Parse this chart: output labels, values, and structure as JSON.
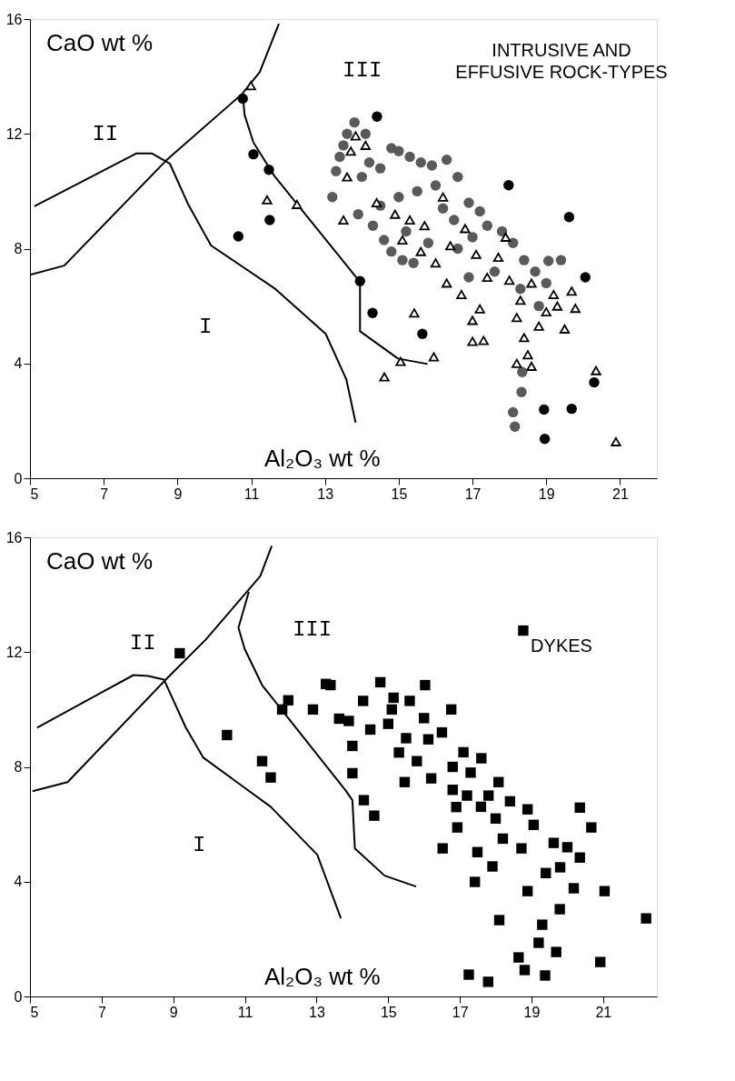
{
  "chart_data": [
    {
      "type": "scatter",
      "title": "INTRUSIVE AND EFFUSIVE ROCK-TYPES",
      "xlabel": "Al₂O₃ wt %",
      "ylabel": "CaO wt %",
      "xlim": [
        5,
        22
      ],
      "ylim": [
        0,
        16
      ],
      "xticks": [
        5,
        7,
        9,
        11,
        13,
        15,
        17,
        19,
        21
      ],
      "yticks": [
        0,
        4,
        8,
        12,
        16
      ],
      "grid": false,
      "annotations": [
        "I",
        "II",
        "III"
      ],
      "series": [
        {
          "type": "line",
          "color": "#000000",
          "marker": "none",
          "line_style": "solid",
          "x": [
            5.12,
            7.89,
            8.3,
            8.79,
            9.28,
            9.91,
            11.63,
            13.02,
            13.58,
            13.83
          ],
          "values": [
            9.48,
            11.32,
            11.32,
            10.97,
            9.57,
            8.11,
            6.62,
            5.03,
            3.44,
            1.94
          ]
        },
        {
          "type": "line",
          "color": "#000000",
          "marker": "none",
          "line_style": "solid",
          "x": [
            5.0,
            5.93,
            8.69,
            10.75,
            11.23,
            11.75
          ],
          "values": [
            7.09,
            7.41,
            11.07,
            13.39,
            14.15,
            15.84
          ]
        },
        {
          "type": "line",
          "color": "#000000",
          "marker": "none",
          "line_style": "solid",
          "x": [
            10.77,
            10.82,
            11.06,
            11.63,
            13.83,
            13.95,
            13.95,
            14.98,
            15.78
          ],
          "values": [
            13.36,
            12.66,
            11.7,
            10.53,
            7.03,
            6.87,
            5.12,
            4.17,
            3.98
          ]
        },
        {
          "type": "scatter",
          "color": "#5a5a5a",
          "marker": "circle",
          "x": [
            13.3,
            13.5,
            13.6,
            13.8,
            13.4,
            13.2,
            13.9,
            14.0,
            14.2,
            14.5,
            14.8,
            15.0,
            15.3,
            15.6,
            15.9,
            16.3,
            16.6,
            16.0,
            15.5,
            15.0,
            14.5,
            14.3,
            14.6,
            14.8,
            15.1,
            15.4,
            15.8,
            16.2,
            16.5,
            16.9,
            17.2,
            17.4,
            17.0,
            16.6,
            17.8,
            18.1,
            18.4,
            18.7,
            19.0,
            19.4,
            17.6,
            16.9,
            18.3,
            18.8,
            18.35,
            18.33,
            18.1,
            18.15,
            15.2,
            14.1,
            19.06
          ],
          "values": [
            10.7,
            11.6,
            12.0,
            12.4,
            11.2,
            9.8,
            9.2,
            10.5,
            11.0,
            10.8,
            11.5,
            11.4,
            11.2,
            11.0,
            10.9,
            11.1,
            10.5,
            10.2,
            10.0,
            9.8,
            9.5,
            8.8,
            8.3,
            7.9,
            7.6,
            7.5,
            8.2,
            9.4,
            9.0,
            9.6,
            9.3,
            8.8,
            8.4,
            8.0,
            8.6,
            8.2,
            7.6,
            7.2,
            6.8,
            7.6,
            7.2,
            7.0,
            6.6,
            6.0,
            3.7,
            3.0,
            2.3,
            1.8,
            8.6,
            12.0,
            7.57
          ]
        },
        {
          "type": "scatter",
          "color": "#000000",
          "marker": "triangle",
          "x": [
            10.99,
            11.43,
            12.24,
            13.83,
            15.42,
            15.05,
            15.95,
            14.61,
            17.0,
            19.69,
            19.79,
            20.35,
            20.89,
            13.7,
            14.1,
            13.6,
            13.5,
            14.4,
            14.9,
            15.3,
            15.7,
            15.1,
            15.6,
            16.0,
            16.4,
            16.8,
            17.1,
            17.4,
            17.7,
            18.0,
            18.3,
            18.6,
            19.0,
            19.2,
            19.5,
            16.3,
            16.7,
            17.2,
            17.0,
            17.3,
            18.2,
            18.4,
            18.5,
            18.2,
            18.6,
            18.8,
            19.3,
            17.9,
            16.2
          ],
          "values": [
            13.68,
            9.7,
            9.54,
            11.93,
            5.76,
            4.07,
            4.23,
            3.53,
            4.77,
            6.52,
            5.92,
            3.75,
            1.27,
            11.4,
            11.6,
            10.5,
            9.0,
            9.6,
            9.2,
            9.0,
            8.8,
            8.3,
            7.9,
            7.5,
            8.1,
            8.7,
            7.8,
            7.0,
            7.7,
            6.9,
            6.2,
            6.8,
            5.8,
            6.4,
            5.2,
            6.8,
            6.4,
            5.9,
            5.5,
            4.8,
            5.6,
            4.9,
            4.3,
            4.0,
            3.9,
            5.3,
            6.0,
            8.4,
            9.8
          ]
        },
        {
          "type": "scatter",
          "color": "#000000",
          "marker": "circle",
          "x": [
            10.77,
            11.06,
            11.48,
            11.5,
            10.65,
            13.95,
            14.41,
            17.98,
            19.62,
            20.06,
            14.29,
            15.64,
            20.3,
            18.94,
            19.69,
            18.96
          ],
          "values": [
            13.23,
            11.29,
            10.75,
            9.0,
            8.43,
            6.87,
            12.6,
            10.21,
            9.1,
            7.0,
            5.76,
            5.03,
            3.34,
            2.39,
            2.42,
            1.37
          ]
        }
      ]
    },
    {
      "type": "scatter",
      "title": "DYKES",
      "xlabel": "Al₂O₃ wt %",
      "ylabel": "CaO wt %",
      "xlim": [
        5,
        22.5
      ],
      "ylim": [
        0,
        16
      ],
      "xticks": [
        5,
        7,
        9,
        11,
        13,
        15,
        17,
        19,
        21
      ],
      "yticks": [
        0,
        4,
        8,
        12,
        16
      ],
      "grid": false,
      "annotations": [
        "I",
        "II",
        "III"
      ],
      "series": [
        {
          "type": "line",
          "color": "#000000",
          "marker": "none",
          "line_style": "solid",
          "x": [
            5.2,
            7.89,
            8.3,
            8.74,
            9.35,
            9.84,
            11.72,
            13.02,
            13.68
          ],
          "values": [
            9.37,
            11.2,
            11.17,
            11.04,
            9.37,
            8.32,
            6.61,
            4.94,
            2.72
          ]
        },
        {
          "type": "line",
          "color": "#000000",
          "marker": "none",
          "line_style": "solid",
          "x": [
            5.07,
            6.05,
            8.79,
            9.91,
            11.06,
            11.43,
            11.75
          ],
          "values": [
            7.15,
            7.47,
            11.04,
            12.44,
            14.11,
            14.65,
            15.7
          ]
        },
        {
          "type": "line",
          "color": "#000000",
          "marker": "none",
          "line_style": "solid",
          "x": [
            11.11,
            10.82,
            10.99,
            11.48,
            13.83,
            14.0,
            14.07,
            14.9,
            15.78
          ],
          "values": [
            14.11,
            12.85,
            12.12,
            10.85,
            7.15,
            6.84,
            5.16,
            4.21,
            3.83
          ]
        },
        {
          "type": "scatter",
          "color": "#000000",
          "marker": "square",
          "x": [
            9.18,
            10.5,
            11.48,
            11.72,
            12.21,
            12.04,
            12.9,
            13.26,
            18.77,
            13.39,
            14.78,
            16.03,
            16.76,
            15.15,
            13.63,
            14.0,
            14.0,
            14.32,
            14.61,
            16.52,
            15.46,
            16.12,
            17.1,
            18.08,
            17.59,
            16.93,
            17.49,
            17.42,
            17.91,
            18.89,
            18.72,
            19.06,
            20.35,
            20.67,
            19.62,
            20.35,
            20.18,
            18.89,
            19.79,
            21.04,
            22.2,
            18.1,
            19.3,
            19.2,
            19.69,
            18.64,
            20.92,
            17.25,
            17.79,
            18.81,
            19.38,
            15.0,
            15.5,
            16.0,
            16.5,
            15.8,
            16.2,
            16.8,
            17.3,
            17.6,
            15.3,
            14.5,
            13.9,
            15.6,
            16.8,
            17.8,
            18.4,
            18.2,
            19.4,
            19.8,
            20.0,
            16.9,
            17.2,
            18.0,
            15.1,
            14.3
          ],
          "values": [
            11.96,
            9.11,
            8.2,
            7.63,
            10.32,
            10.0,
            10.0,
            10.89,
            12.75,
            10.85,
            10.95,
            10.85,
            10.0,
            10.41,
            9.68,
            8.73,
            7.78,
            6.84,
            6.3,
            5.16,
            7.47,
            8.96,
            8.51,
            7.47,
            6.61,
            5.89,
            5.03,
            3.99,
            4.53,
            6.52,
            5.16,
            5.98,
            6.58,
            5.89,
            5.35,
            4.84,
            3.77,
            3.67,
            3.04,
            3.67,
            2.72,
            2.66,
            2.5,
            1.87,
            1.55,
            1.36,
            1.2,
            0.76,
            0.51,
            0.92,
            0.73,
            9.5,
            9.0,
            9.7,
            9.2,
            8.2,
            7.6,
            7.2,
            7.8,
            8.3,
            8.5,
            9.3,
            9.6,
            10.3,
            8.0,
            7.0,
            6.8,
            5.5,
            4.3,
            4.5,
            5.2,
            6.6,
            7.0,
            6.2,
            10.0,
            10.3
          ]
        }
      ]
    }
  ]
}
